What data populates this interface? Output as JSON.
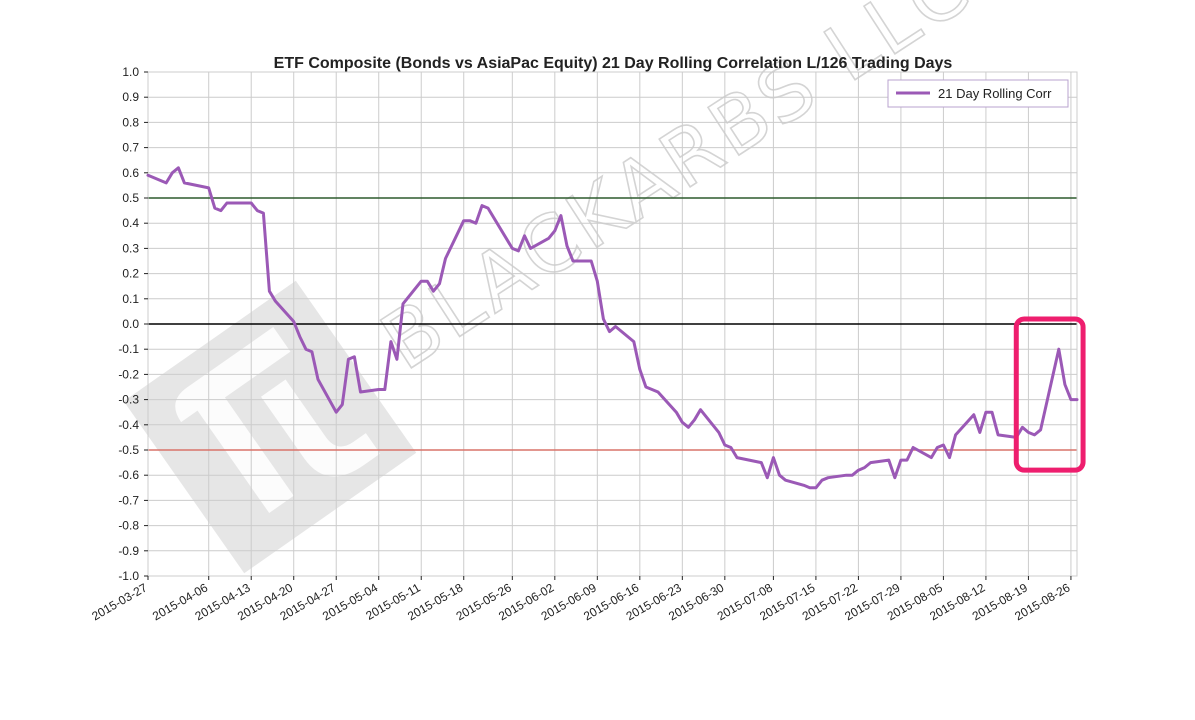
{
  "colors": {
    "series": "#9b59b6",
    "upper_band": "#2d5a2d",
    "zero_line": "#000000",
    "lower_band": "#d9736a",
    "highlight_box": "#ee1e6e",
    "grid": "#cccccc",
    "watermark": "#d4d4d4"
  },
  "watermark": {
    "text": "BLACKARBS LLC",
    "logo": "logo-icon"
  },
  "chart_data": {
    "type": "line",
    "title": "ETF Composite (Bonds vs AsiaPac Equity) 21 Day Rolling Correlation L/126 Trading Days",
    "xlabel": "",
    "ylabel": "",
    "ylim": [
      -1.0,
      1.0
    ],
    "xlim": [
      "2015-03-27",
      "2015-08-27"
    ],
    "grid": true,
    "legend_position": "top-right",
    "y_ticks": [
      "1.0",
      "0.9",
      "0.8",
      "0.7",
      "0.6",
      "0.5",
      "0.4",
      "0.3",
      "0.2",
      "0.1",
      "0.0",
      "-0.1",
      "-0.2",
      "-0.3",
      "-0.4",
      "-0.5",
      "-0.6",
      "-0.7",
      "-0.8",
      "-0.9",
      "-1.0"
    ],
    "x_ticks": [
      "2015-03-27",
      "2015-04-06",
      "2015-04-13",
      "2015-04-20",
      "2015-04-27",
      "2015-05-04",
      "2015-05-11",
      "2015-05-18",
      "2015-05-26",
      "2015-06-02",
      "2015-06-09",
      "2015-06-16",
      "2015-06-23",
      "2015-06-30",
      "2015-07-08",
      "2015-07-15",
      "2015-07-22",
      "2015-07-29",
      "2015-08-05",
      "2015-08-12",
      "2015-08-19",
      "2015-08-26"
    ],
    "reference_lines": [
      {
        "y": 0.5,
        "color": "#2d5a2d"
      },
      {
        "y": 0.0,
        "color": "#000000"
      },
      {
        "y": -0.5,
        "color": "#d9736a"
      }
    ],
    "highlight": {
      "x_start": "2015-08-17",
      "x_end": "2015-08-28",
      "y_start": -0.58,
      "y_end": 0.02,
      "color": "#ee1e6e"
    },
    "series": [
      {
        "name": "21 Day Rolling Corr",
        "color": "#9b59b6",
        "x": [
          "2015-03-27",
          "2015-03-30",
          "2015-03-31",
          "2015-04-01",
          "2015-04-02",
          "2015-04-06",
          "2015-04-07",
          "2015-04-08",
          "2015-04-09",
          "2015-04-10",
          "2015-04-13",
          "2015-04-14",
          "2015-04-15",
          "2015-04-16",
          "2015-04-17",
          "2015-04-20",
          "2015-04-21",
          "2015-04-22",
          "2015-04-23",
          "2015-04-24",
          "2015-04-27",
          "2015-04-28",
          "2015-04-29",
          "2015-04-30",
          "2015-05-01",
          "2015-05-04",
          "2015-05-05",
          "2015-05-06",
          "2015-05-07",
          "2015-05-08",
          "2015-05-11",
          "2015-05-12",
          "2015-05-13",
          "2015-05-14",
          "2015-05-15",
          "2015-05-18",
          "2015-05-19",
          "2015-05-20",
          "2015-05-21",
          "2015-05-22",
          "2015-05-26",
          "2015-05-27",
          "2015-05-28",
          "2015-05-29",
          "2015-06-01",
          "2015-06-02",
          "2015-06-03",
          "2015-06-04",
          "2015-06-05",
          "2015-06-08",
          "2015-06-09",
          "2015-06-10",
          "2015-06-11",
          "2015-06-12",
          "2015-06-15",
          "2015-06-16",
          "2015-06-17",
          "2015-06-18",
          "2015-06-19",
          "2015-06-22",
          "2015-06-23",
          "2015-06-24",
          "2015-06-25",
          "2015-06-26",
          "2015-06-29",
          "2015-06-30",
          "2015-07-01",
          "2015-07-02",
          "2015-07-06",
          "2015-07-07",
          "2015-07-08",
          "2015-07-09",
          "2015-07-10",
          "2015-07-13",
          "2015-07-14",
          "2015-07-15",
          "2015-07-16",
          "2015-07-17",
          "2015-07-20",
          "2015-07-21",
          "2015-07-22",
          "2015-07-23",
          "2015-07-24",
          "2015-07-27",
          "2015-07-28",
          "2015-07-29",
          "2015-07-30",
          "2015-07-31",
          "2015-08-03",
          "2015-08-04",
          "2015-08-05",
          "2015-08-06",
          "2015-08-07",
          "2015-08-10",
          "2015-08-11",
          "2015-08-12",
          "2015-08-13",
          "2015-08-14",
          "2015-08-17",
          "2015-08-18",
          "2015-08-19",
          "2015-08-20",
          "2015-08-21",
          "2015-08-24",
          "2015-08-25",
          "2015-08-26",
          "2015-08-27"
        ],
        "y": [
          0.59,
          0.56,
          0.6,
          0.62,
          0.56,
          0.54,
          0.46,
          0.45,
          0.48,
          0.48,
          0.48,
          0.45,
          0.44,
          0.13,
          0.09,
          0.01,
          -0.05,
          -0.1,
          -0.11,
          -0.22,
          -0.35,
          -0.32,
          -0.14,
          -0.13,
          -0.27,
          -0.26,
          -0.26,
          -0.07,
          -0.14,
          0.08,
          0.17,
          0.17,
          0.13,
          0.16,
          0.26,
          0.41,
          0.41,
          0.4,
          0.47,
          0.46,
          0.3,
          0.29,
          0.35,
          0.3,
          0.34,
          0.37,
          0.43,
          0.31,
          0.25,
          0.25,
          0.17,
          0.02,
          -0.03,
          -0.01,
          -0.07,
          -0.18,
          -0.25,
          -0.26,
          -0.27,
          -0.35,
          -0.39,
          -0.41,
          -0.38,
          -0.34,
          -0.43,
          -0.48,
          -0.49,
          -0.53,
          -0.55,
          -0.61,
          -0.53,
          -0.6,
          -0.62,
          -0.64,
          -0.65,
          -0.65,
          -0.62,
          -0.61,
          -0.6,
          -0.6,
          -0.58,
          -0.57,
          -0.55,
          -0.54,
          -0.61,
          -0.54,
          -0.54,
          -0.49,
          -0.53,
          -0.49,
          -0.48,
          -0.53,
          -0.44,
          -0.36,
          -0.43,
          -0.35,
          -0.35,
          -0.44,
          -0.45,
          -0.41,
          -0.43,
          -0.44,
          -0.42,
          -0.1,
          -0.24,
          -0.3,
          -0.3
        ]
      }
    ]
  }
}
